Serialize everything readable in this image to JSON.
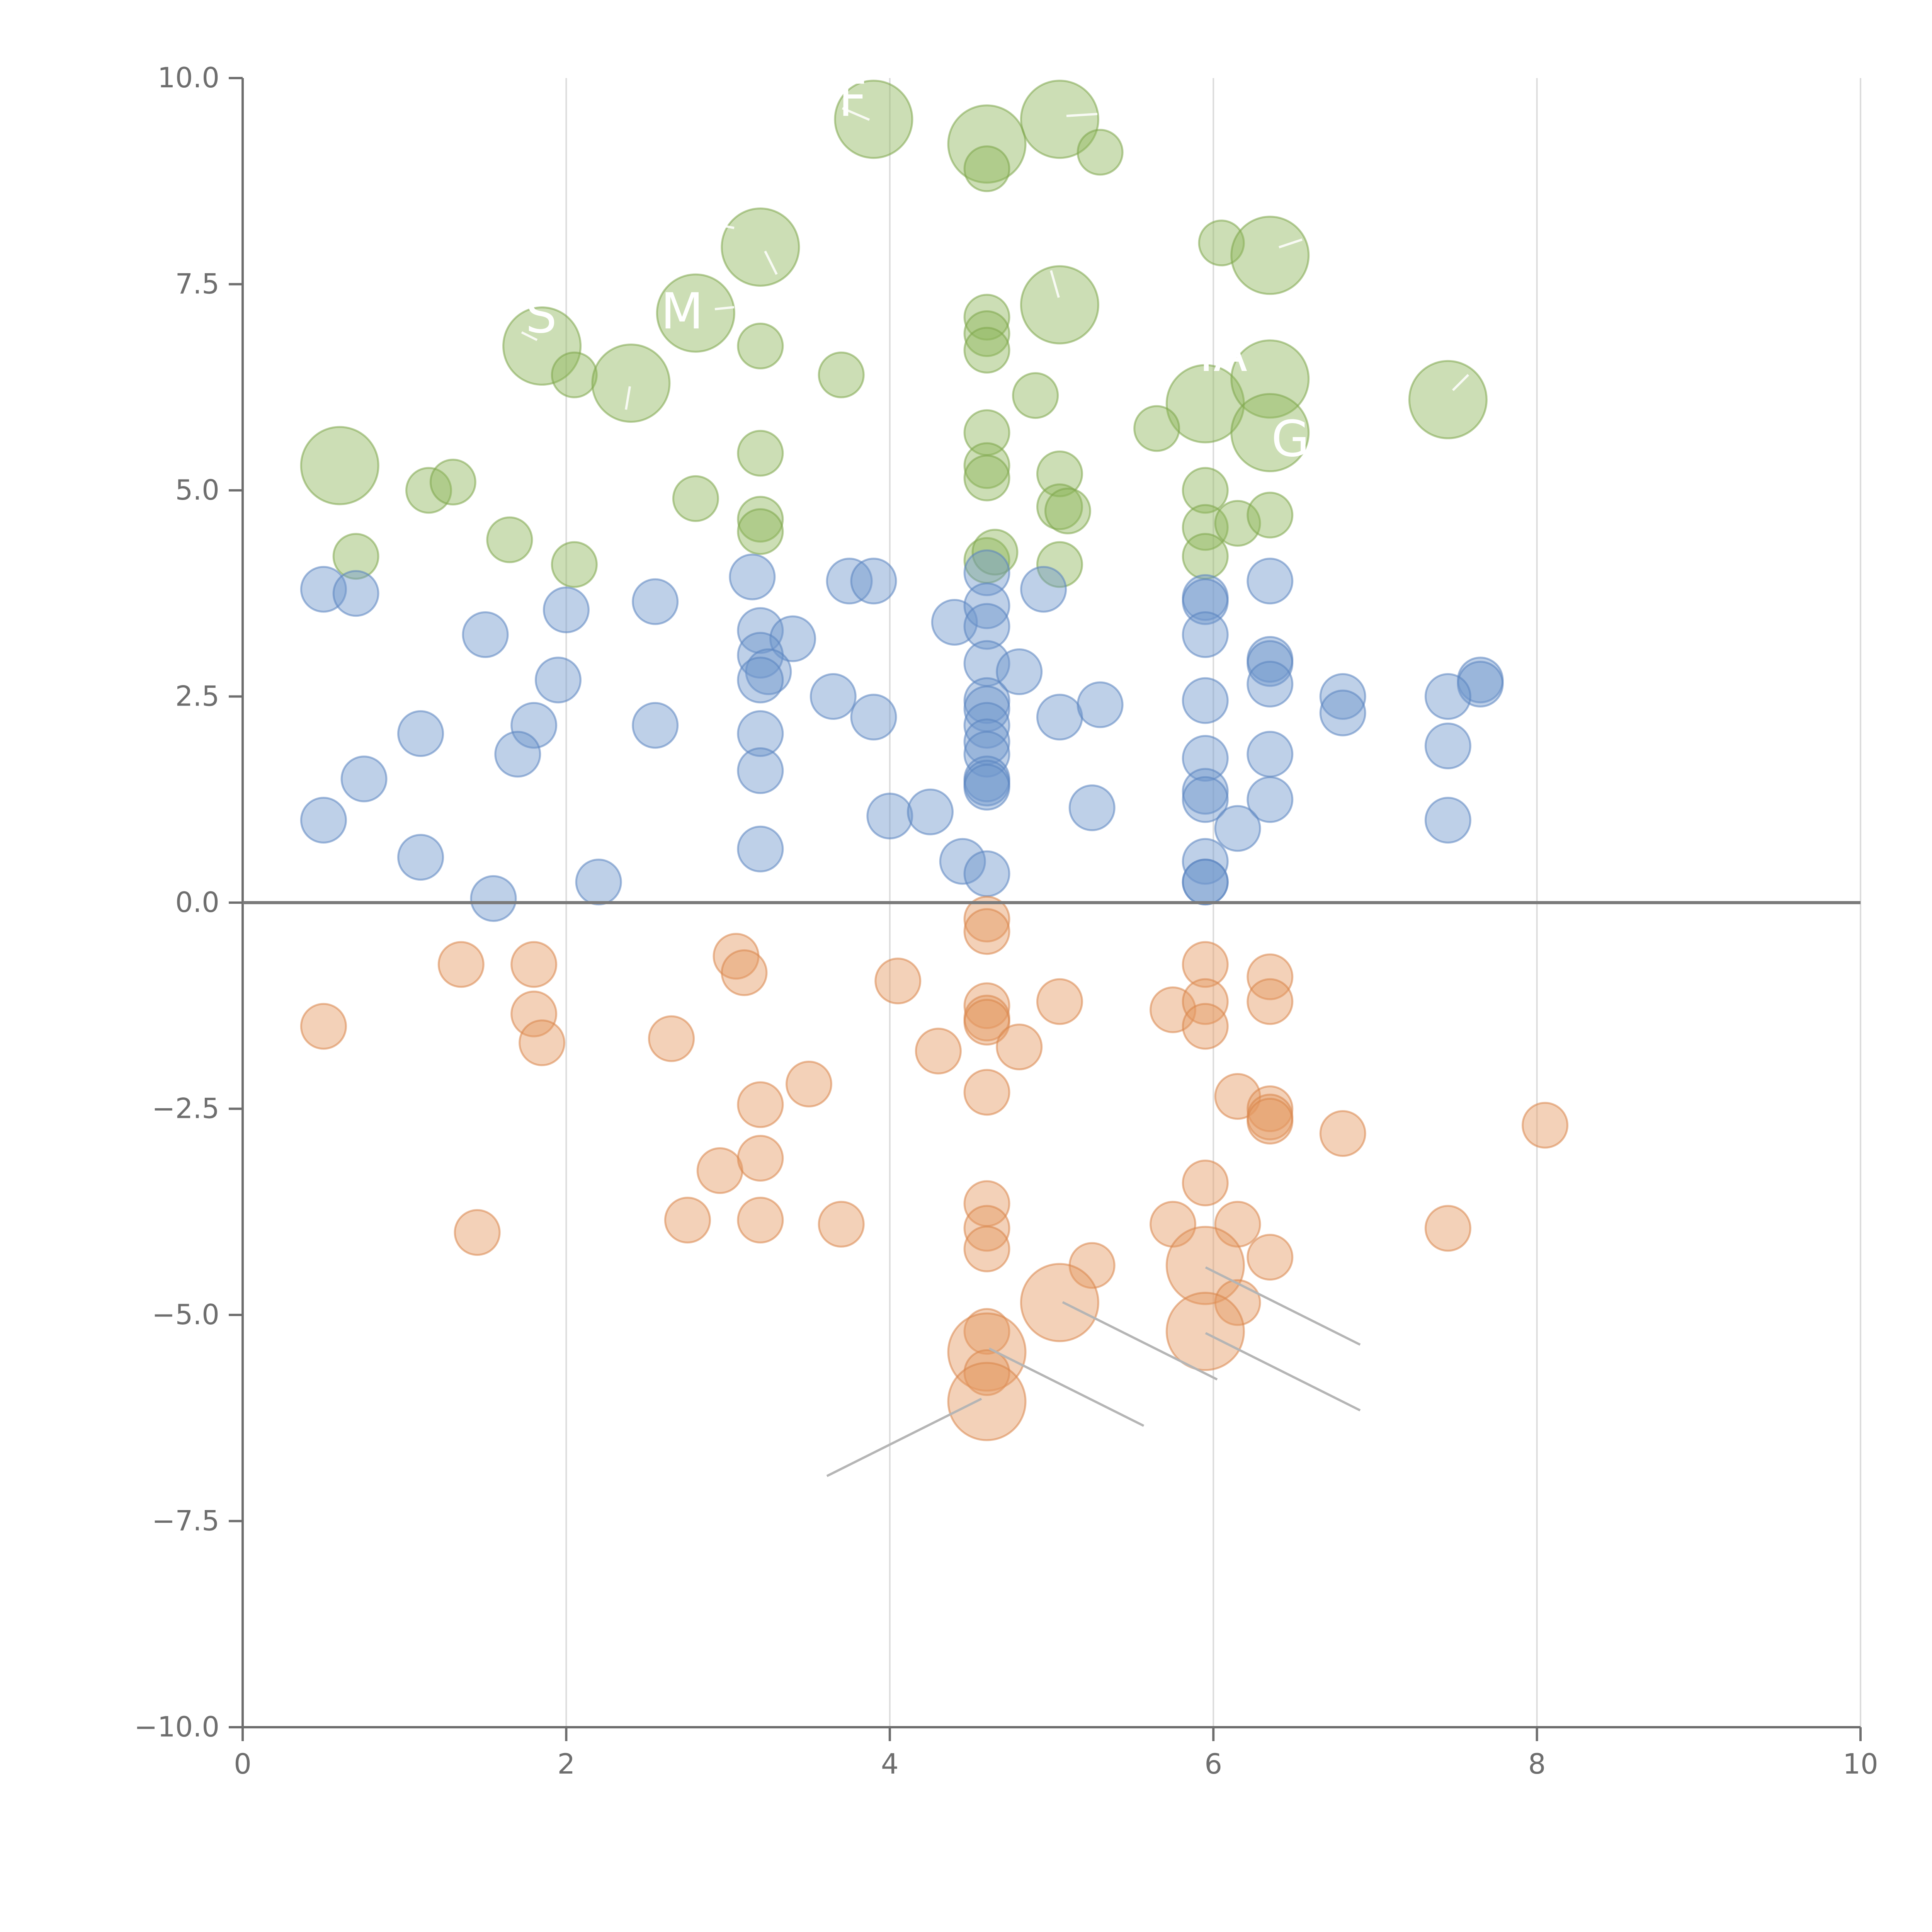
{
  "chart_data": {
    "type": "scatter",
    "title": "",
    "xlabel": "",
    "ylabel": "",
    "xlim": [
      0,
      10
    ],
    "ylim": [
      -10,
      10
    ],
    "grid": "vertical",
    "legend": "none",
    "zero_line": true,
    "x_ticks": [
      0,
      2,
      4,
      6,
      8,
      10
    ],
    "x_tick_labels": [
      "0",
      "2",
      "4",
      "6",
      "8",
      "10"
    ],
    "y_ticks": [
      10,
      7.5,
      5,
      2.5,
      0,
      -2.5,
      -5,
      -7.5,
      -10
    ],
    "y_tick_labels": [
      "10.0",
      "7.5",
      "5.0",
      "2.5",
      "0.0",
      "−2.5",
      "−5.0",
      "−7.5",
      "−10.0"
    ],
    "series": [
      {
        "name": "green",
        "color": "#8fb65a",
        "stroke": "#7ea64a",
        "points": [
          [
            3.9,
            9.5,
            2
          ],
          [
            4.6,
            9.2,
            2
          ],
          [
            5.05,
            9.5,
            2
          ],
          [
            4.6,
            8.9,
            0
          ],
          [
            5.3,
            9.1,
            0
          ],
          [
            3.2,
            7.95,
            2
          ],
          [
            6.05,
            8.0,
            0
          ],
          [
            6.35,
            7.85,
            2
          ],
          [
            1.85,
            6.75,
            2
          ],
          [
            2.8,
            7.15,
            2
          ],
          [
            3.2,
            6.75,
            0
          ],
          [
            4.6,
            7.1,
            0
          ],
          [
            4.6,
            6.9,
            0
          ],
          [
            4.6,
            6.7,
            0
          ],
          [
            5.05,
            7.25,
            2
          ],
          [
            2.05,
            6.4,
            0
          ],
          [
            2.4,
            6.3,
            2
          ],
          [
            3.7,
            6.4,
            0
          ],
          [
            4.9,
            6.15,
            0
          ],
          [
            5.95,
            6.05,
            2
          ],
          [
            6.35,
            6.35,
            2
          ],
          [
            7.45,
            6.1,
            2
          ],
          [
            5.65,
            5.75,
            0
          ],
          [
            6.35,
            5.7,
            2
          ],
          [
            0.6,
            5.3,
            2
          ],
          [
            1.15,
            5.0,
            0
          ],
          [
            1.3,
            5.1,
            0
          ],
          [
            2.8,
            4.9,
            0
          ],
          [
            3.2,
            5.45,
            0
          ],
          [
            4.6,
            5.7,
            0
          ],
          [
            4.6,
            5.3,
            0
          ],
          [
            4.6,
            5.15,
            0
          ],
          [
            5.05,
            5.2,
            0
          ],
          [
            5.95,
            5.0,
            0
          ],
          [
            0.7,
            4.2,
            0
          ],
          [
            1.65,
            4.4,
            0
          ],
          [
            2.05,
            4.1,
            0
          ],
          [
            3.2,
            4.65,
            0
          ],
          [
            3.2,
            4.5,
            0
          ],
          [
            4.6,
            4.15,
            0
          ],
          [
            4.65,
            4.25,
            0
          ],
          [
            5.05,
            4.8,
            0
          ],
          [
            5.1,
            4.75,
            0
          ],
          [
            5.05,
            4.1,
            0
          ],
          [
            5.95,
            4.55,
            0
          ],
          [
            5.95,
            4.2,
            0
          ],
          [
            6.15,
            4.6,
            0
          ],
          [
            6.35,
            4.7,
            0
          ]
        ]
      },
      {
        "name": "blue",
        "color": "#6e96cc",
        "stroke": "#5a84c0",
        "points": [
          [
            0.5,
            3.8,
            0
          ],
          [
            0.7,
            3.75,
            0
          ],
          [
            1.5,
            3.25,
            0
          ],
          [
            2.0,
            3.55,
            0
          ],
          [
            2.55,
            3.65,
            0
          ],
          [
            3.15,
            3.95,
            0
          ],
          [
            3.75,
            3.9,
            0
          ],
          [
            3.9,
            3.9,
            0
          ],
          [
            4.6,
            4.0,
            0
          ],
          [
            4.95,
            3.8,
            0
          ],
          [
            5.95,
            3.7,
            0
          ],
          [
            5.95,
            3.65,
            0
          ],
          [
            6.35,
            3.9,
            0
          ],
          [
            3.2,
            3.3,
            0
          ],
          [
            3.4,
            3.2,
            0
          ],
          [
            3.2,
            3.0,
            0
          ],
          [
            3.25,
            2.8,
            0
          ],
          [
            3.2,
            2.7,
            0
          ],
          [
            4.4,
            3.4,
            0
          ],
          [
            4.6,
            3.6,
            0
          ],
          [
            4.6,
            3.35,
            0
          ],
          [
            4.6,
            2.9,
            0
          ],
          [
            4.8,
            2.8,
            0
          ],
          [
            5.95,
            3.25,
            0
          ],
          [
            6.35,
            2.95,
            0
          ],
          [
            6.35,
            2.9,
            0
          ],
          [
            6.35,
            2.65,
            0
          ],
          [
            1.95,
            2.7,
            0
          ],
          [
            7.65,
            2.7,
            0
          ],
          [
            7.65,
            2.65,
            0
          ],
          [
            1.1,
            2.05,
            0
          ],
          [
            1.8,
            2.15,
            0
          ],
          [
            2.55,
            2.15,
            0
          ],
          [
            3.2,
            2.05,
            0
          ],
          [
            3.65,
            2.5,
            0
          ],
          [
            3.9,
            2.25,
            0
          ],
          [
            4.6,
            2.45,
            0
          ],
          [
            4.6,
            2.35,
            0
          ],
          [
            4.6,
            2.15,
            0
          ],
          [
            4.6,
            1.95,
            0
          ],
          [
            4.6,
            1.8,
            0
          ],
          [
            5.05,
            2.25,
            0
          ],
          [
            5.3,
            2.4,
            0
          ],
          [
            5.95,
            2.45,
            0
          ],
          [
            5.95,
            1.75,
            0
          ],
          [
            6.35,
            1.8,
            0
          ],
          [
            6.8,
            2.5,
            0
          ],
          [
            6.8,
            2.3,
            0
          ],
          [
            7.45,
            2.5,
            0
          ],
          [
            7.45,
            1.9,
            0
          ],
          [
            0.75,
            1.5,
            0
          ],
          [
            1.7,
            1.8,
            0
          ],
          [
            3.2,
            1.6,
            0
          ],
          [
            4.6,
            1.5,
            0
          ],
          [
            4.6,
            1.45,
            0
          ],
          [
            4.6,
            1.4,
            0
          ],
          [
            5.95,
            1.35,
            0
          ],
          [
            5.95,
            1.25,
            0
          ],
          [
            6.35,
            1.25,
            0
          ],
          [
            0.5,
            1.0,
            0
          ],
          [
            4.0,
            1.05,
            0
          ],
          [
            4.25,
            1.1,
            0
          ],
          [
            5.25,
            1.15,
            0
          ],
          [
            6.15,
            0.9,
            0
          ],
          [
            7.45,
            1.0,
            0
          ],
          [
            1.1,
            0.55,
            0
          ],
          [
            3.2,
            0.65,
            0
          ],
          [
            4.45,
            0.5,
            0
          ],
          [
            4.6,
            0.35,
            0
          ],
          [
            5.95,
            0.5,
            0
          ],
          [
            5.95,
            0.25,
            0
          ],
          [
            5.95,
            0.25,
            0
          ],
          [
            1.55,
            0.05,
            0
          ],
          [
            2.2,
            0.25,
            0
          ]
        ]
      },
      {
        "name": "orange",
        "color": "#e49a62",
        "stroke": "#d8854a",
        "points": [
          [
            4.6,
            -0.2,
            0
          ],
          [
            4.6,
            -0.35,
            0
          ],
          [
            1.35,
            -0.75,
            0
          ],
          [
            1.8,
            -0.75,
            0
          ],
          [
            3.05,
            -0.65,
            0
          ],
          [
            3.1,
            -0.85,
            0
          ],
          [
            4.05,
            -0.95,
            0
          ],
          [
            5.95,
            -0.75,
            0
          ],
          [
            6.35,
            -0.9,
            0
          ],
          [
            0.5,
            -1.5,
            0
          ],
          [
            1.8,
            -1.35,
            0
          ],
          [
            1.85,
            -1.7,
            0
          ],
          [
            2.65,
            -1.65,
            0
          ],
          [
            4.3,
            -1.8,
            0
          ],
          [
            4.6,
            -1.25,
            0
          ],
          [
            4.6,
            -1.4,
            0
          ],
          [
            4.6,
            -1.45,
            0
          ],
          [
            4.8,
            -1.75,
            0
          ],
          [
            5.05,
            -1.2,
            0
          ],
          [
            5.75,
            -1.3,
            0
          ],
          [
            5.95,
            -1.2,
            0
          ],
          [
            5.95,
            -1.5,
            0
          ],
          [
            6.35,
            -1.2,
            0
          ],
          [
            3.2,
            -2.45,
            0
          ],
          [
            3.5,
            -2.2,
            0
          ],
          [
            4.6,
            -2.3,
            0
          ],
          [
            6.15,
            -2.35,
            0
          ],
          [
            6.35,
            -2.5,
            0
          ],
          [
            6.35,
            -2.6,
            0
          ],
          [
            6.35,
            -2.65,
            0
          ],
          [
            6.8,
            -2.8,
            0
          ],
          [
            8.05,
            -2.7,
            0
          ],
          [
            2.95,
            -3.25,
            0
          ],
          [
            3.2,
            -3.1,
            0
          ],
          [
            5.95,
            -3.4,
            0
          ],
          [
            1.45,
            -4.0,
            0
          ],
          [
            2.75,
            -3.85,
            0
          ],
          [
            3.2,
            -3.85,
            0
          ],
          [
            3.7,
            -3.9,
            0
          ],
          [
            4.6,
            -3.65,
            0
          ],
          [
            4.6,
            -3.95,
            0
          ],
          [
            4.6,
            -4.2,
            0
          ],
          [
            5.25,
            -4.4,
            0
          ],
          [
            5.75,
            -3.9,
            0
          ],
          [
            6.15,
            -3.9,
            0
          ],
          [
            6.35,
            -4.3,
            0
          ],
          [
            7.45,
            -3.95,
            0
          ],
          [
            5.95,
            -4.4,
            2
          ],
          [
            6.15,
            -4.85,
            0
          ],
          [
            5.05,
            -4.85,
            2
          ],
          [
            5.95,
            -5.2,
            2
          ],
          [
            4.6,
            -5.2,
            0
          ],
          [
            4.6,
            -5.45,
            2
          ],
          [
            4.6,
            -5.7,
            0
          ],
          [
            4.6,
            -6.05,
            2
          ]
        ]
      }
    ],
    "annotations": [
      "F",
      "M",
      "S",
      "MA",
      "G"
    ]
  }
}
